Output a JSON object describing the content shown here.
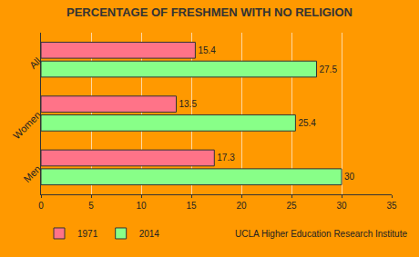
{
  "chart_data": {
    "type": "bar",
    "title": "PERCENTAGE OF FRESHMEN WITH NO RELIGION",
    "orientation": "horizontal",
    "categories": [
      "All",
      "Women",
      "Men"
    ],
    "series": [
      {
        "name": "1971",
        "color": "#ff7388",
        "values": [
          15.4,
          13.5,
          17.3
        ]
      },
      {
        "name": "2014",
        "color": "#88ff88",
        "values": [
          27.5,
          25.4,
          30
        ]
      }
    ],
    "xlim": [
      0,
      35
    ],
    "xticks": [
      0,
      5,
      10,
      15,
      20,
      25,
      30,
      35
    ],
    "grid": true,
    "data_labels": true,
    "legend": "bottom left",
    "annotations": [
      "UCLA Higher Education Research Institute"
    ]
  }
}
